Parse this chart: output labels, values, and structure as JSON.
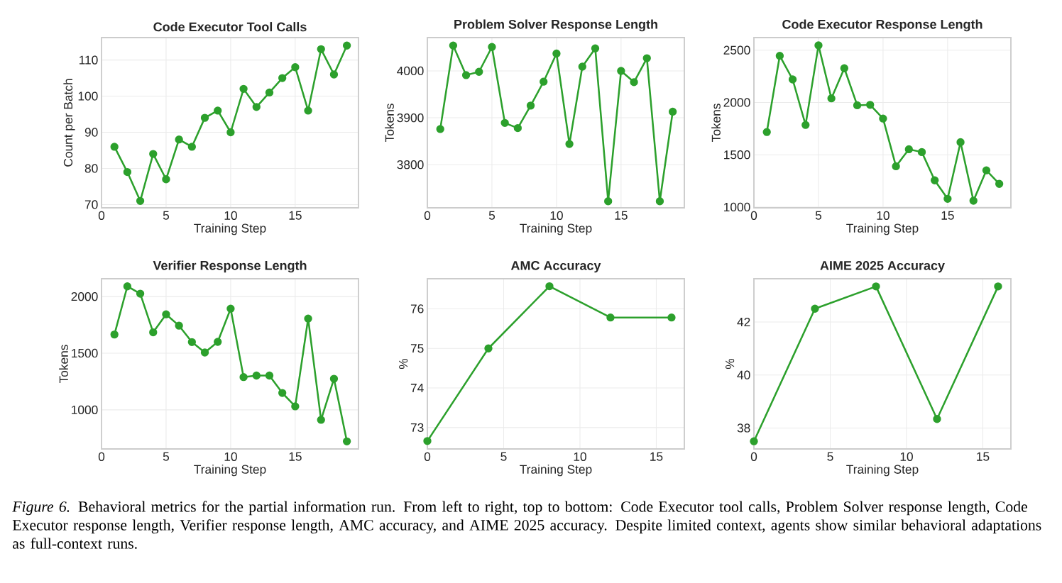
{
  "chart_data": [
    {
      "type": "line",
      "title": "Code Executor Tool Calls",
      "xlabel": "Training Step",
      "ylabel": "Count per Batch",
      "xlim": [
        0,
        19.9
      ],
      "xticks": [
        0,
        5,
        10,
        15
      ],
      "ylim": [
        69.1,
        116.2
      ],
      "yticks": [
        70,
        80,
        90,
        100,
        110
      ],
      "grid": true,
      "marker": "circle",
      "x": [
        1,
        2,
        3,
        4,
        5,
        6,
        7,
        8,
        9,
        10,
        11,
        12,
        13,
        14,
        15,
        16,
        17,
        18,
        19
      ],
      "series": [
        {
          "color": "#2ca02c",
          "values": [
            86,
            79,
            71,
            84,
            77,
            88,
            86,
            94,
            96,
            90,
            102,
            97,
            101,
            105,
            108,
            96,
            113,
            106,
            114
          ]
        }
      ]
    },
    {
      "type": "line",
      "title": "Problem Solver Response Length",
      "xlabel": "Training Step",
      "ylabel": "Tokens",
      "xlim": [
        0,
        19.9
      ],
      "xticks": [
        0,
        5,
        10,
        15
      ],
      "ylim": [
        3708,
        4071
      ],
      "yticks": [
        3800,
        3900,
        4000
      ],
      "grid": true,
      "marker": "circle",
      "x": [
        1,
        2,
        3,
        4,
        5,
        6,
        7,
        8,
        9,
        10,
        11,
        12,
        13,
        14,
        15,
        16,
        17,
        18,
        19
      ],
      "series": [
        {
          "color": "#2ca02c",
          "values": [
            3876,
            4054,
            3991,
            3998,
            4051,
            3889,
            3878,
            3926,
            3977,
            4037,
            3844,
            4009,
            4048,
            3722,
            4000,
            3976,
            4027,
            3722,
            3913
          ]
        }
      ]
    },
    {
      "type": "line",
      "title": "Code Executor Response Length",
      "xlabel": "Training Step",
      "ylabel": "Tokens",
      "xlim": [
        0,
        19.9
      ],
      "xticks": [
        0,
        5,
        10,
        15
      ],
      "ylim": [
        993,
        2620
      ],
      "yticks": [
        1000,
        1500,
        2000,
        2500
      ],
      "grid": true,
      "marker": "circle",
      "x": [
        1,
        2,
        3,
        4,
        5,
        6,
        7,
        8,
        9,
        10,
        11,
        12,
        13,
        14,
        15,
        16,
        17,
        18,
        19
      ],
      "series": [
        {
          "color": "#2ca02c",
          "values": [
            1717,
            2446,
            2220,
            1785,
            2546,
            2039,
            2327,
            1973,
            1977,
            1846,
            1390,
            1553,
            1526,
            1256,
            1079,
            1620,
            1061,
            1351,
            1222
          ]
        }
      ]
    },
    {
      "type": "line",
      "title": "Verifier Response Length",
      "xlabel": "Training Step",
      "ylabel": "Tokens",
      "xlim": [
        0,
        19.9
      ],
      "xticks": [
        0,
        5,
        10,
        15
      ],
      "ylim": [
        655,
        2157
      ],
      "yticks": [
        1000,
        1500,
        2000
      ],
      "grid": true,
      "marker": "circle",
      "x": [
        1,
        2,
        3,
        4,
        5,
        6,
        7,
        8,
        9,
        10,
        11,
        12,
        13,
        14,
        15,
        16,
        17,
        18,
        19
      ],
      "series": [
        {
          "color": "#2ca02c",
          "values": [
            1665,
            2090,
            2025,
            1684,
            1843,
            1743,
            1598,
            1506,
            1600,
            1893,
            1289,
            1303,
            1303,
            1149,
            1031,
            1805,
            912,
            1274,
            722
          ]
        }
      ]
    },
    {
      "type": "line",
      "title": "AMC Accuracy",
      "xlabel": "Training Step",
      "ylabel": "%",
      "xlim": [
        0,
        16.84
      ],
      "xticks": [
        0,
        5,
        10,
        15
      ],
      "ylim": [
        72.46,
        76.76
      ],
      "yticks": [
        73,
        74,
        75,
        76
      ],
      "grid": true,
      "marker": "circle",
      "x": [
        0,
        4,
        8,
        12,
        16
      ],
      "series": [
        {
          "color": "#2ca02c",
          "values": [
            72.66,
            75.0,
            76.57,
            75.78,
            75.78
          ]
        }
      ]
    },
    {
      "type": "line",
      "title": "AIME 2025 Accuracy",
      "xlabel": "Training Step",
      "ylabel": "%",
      "xlim": [
        0,
        16.84
      ],
      "xticks": [
        0,
        5,
        10,
        15
      ],
      "ylim": [
        37.21,
        43.63
      ],
      "yticks": [
        38,
        40,
        42
      ],
      "grid": true,
      "marker": "circle",
      "x": [
        0,
        4,
        8,
        12,
        16
      ],
      "series": [
        {
          "color": "#2ca02c",
          "values": [
            37.5,
            42.5,
            43.34,
            38.34,
            43.34
          ]
        }
      ]
    },
    {
      "type": "other",
      "annotations": [
        "*Figure 6.* Behavioral metrics for the partial information run. From left to right, top to bottom: Code Executor tool calls, Problem Solver response length, Code Executor response length, Verifier response length, AMC accuracy, and AIME 2025 accuracy. Despite limited context, agents show similar behavioral adaptations as full-context runs."
      ]
    }
  ]
}
